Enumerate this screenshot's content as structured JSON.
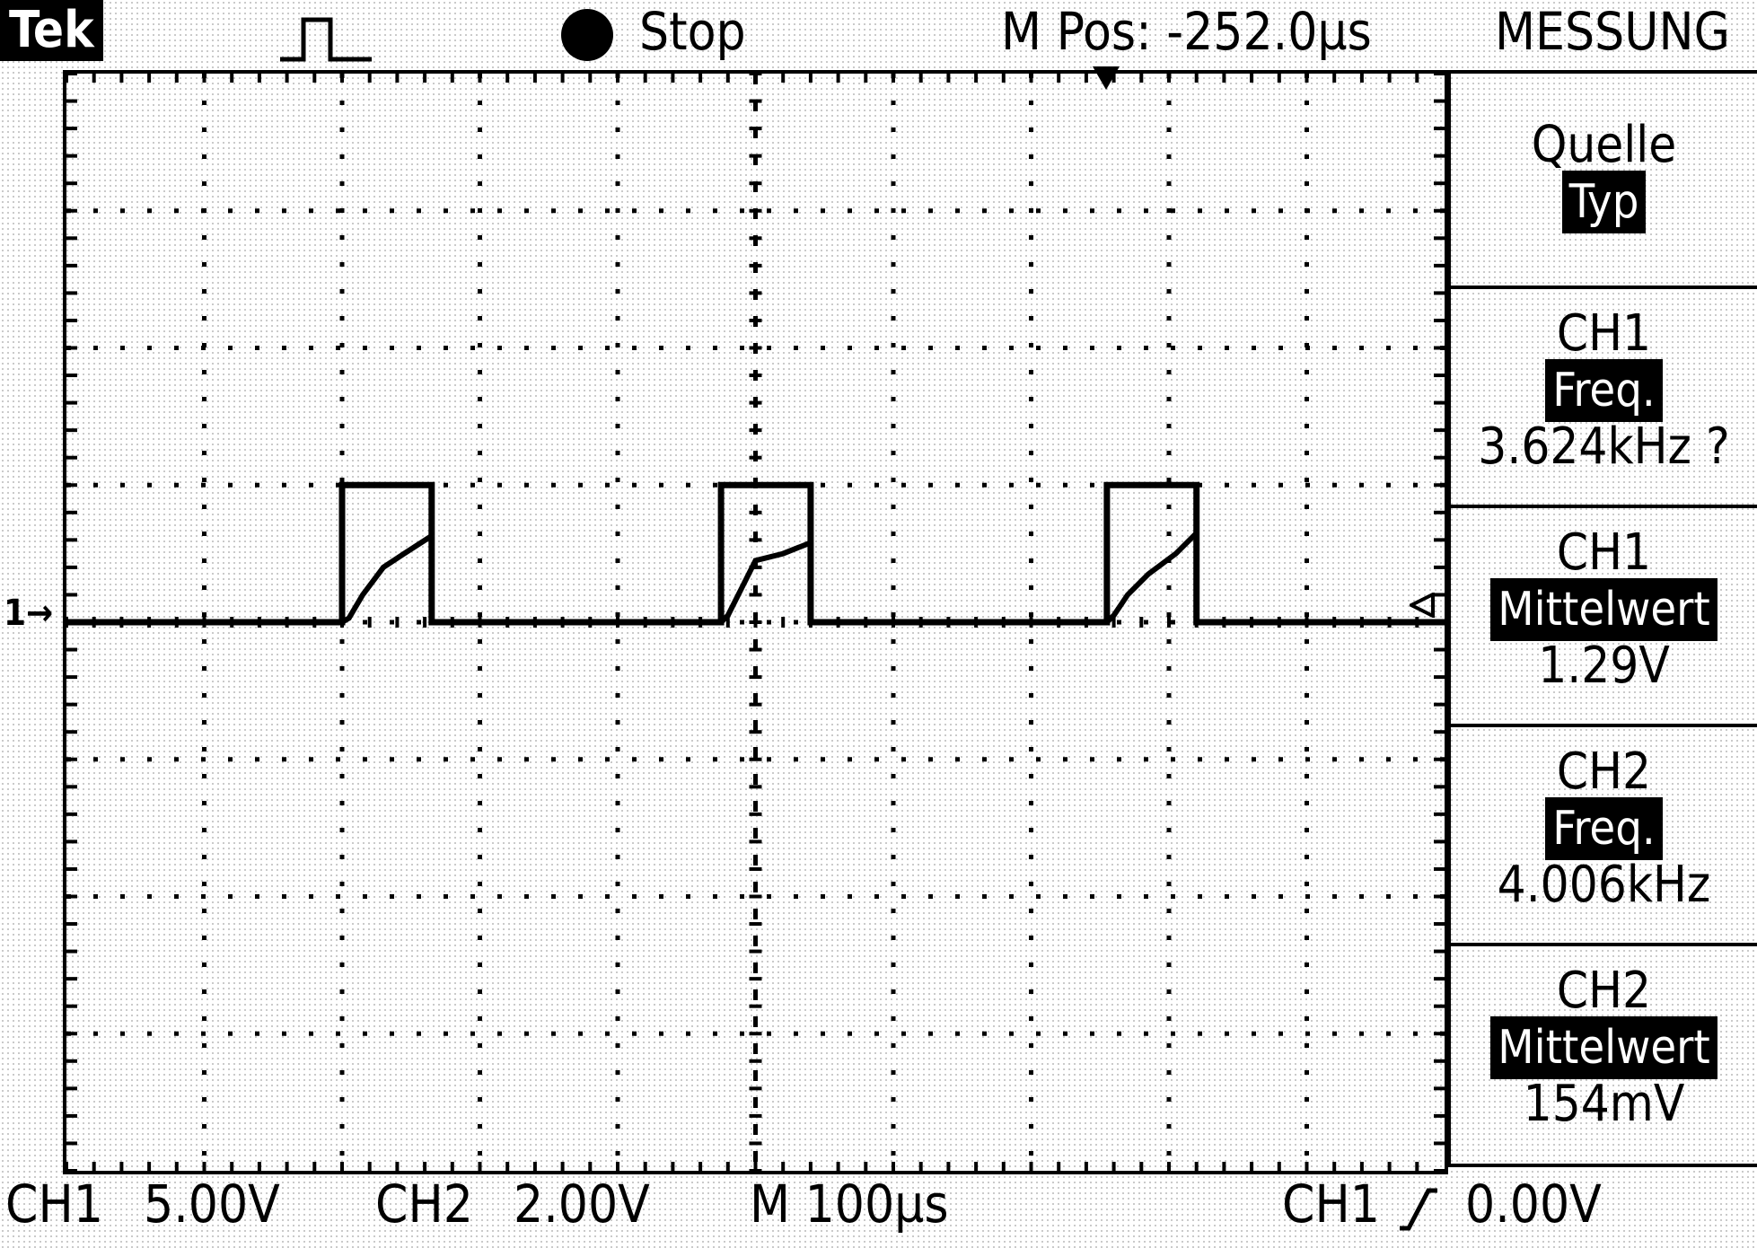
{
  "header": {
    "brand": "Tek",
    "trigger_icon": "pulse-trigger-icon",
    "run_state": "Stop",
    "position": "M Pos: -252.0µs",
    "menu_title": "MESSUNG"
  },
  "menu": {
    "items": [
      {
        "title": "Quelle",
        "selected": "Typ",
        "value": ""
      },
      {
        "title": "CH1",
        "selected": "Freq.",
        "value": "3.624kHz ?"
      },
      {
        "title": "CH1",
        "selected": "Mittelwert",
        "value": "1.29V"
      },
      {
        "title": "CH2",
        "selected": "Freq.",
        "value": "4.006kHz"
      },
      {
        "title": "CH2",
        "selected": "Mittelwert",
        "value": "154mV"
      }
    ]
  },
  "footer": {
    "ch1_label": "CH1",
    "ch1_scale": "5.00V",
    "ch2_label": "CH2",
    "ch2_scale": "2.00V",
    "timebase": "M 100µs",
    "trigger_source": "CH1",
    "trigger_slope_icon": "rising-edge-icon",
    "trigger_level": "0.00V"
  },
  "ground_marker": "1→",
  "chart_data": {
    "type": "line",
    "grid": {
      "divisions_x": 10,
      "divisions_y": 8
    },
    "units": {
      "x": "div",
      "y": "div"
    },
    "baseline_div": 0,
    "series": [
      {
        "name": "CH1",
        "x": [
          0,
          2.0,
          2.0,
          2.65,
          2.65,
          4.75,
          4.75,
          5.4,
          5.4,
          7.55,
          7.55,
          8.2,
          8.2,
          10
        ],
        "y": [
          0,
          0,
          1.0,
          1.0,
          0,
          0,
          1.0,
          1.0,
          0,
          0,
          1.0,
          1.0,
          0,
          0
        ]
      },
      {
        "name": "CH2",
        "x": [
          0,
          2.0,
          2.05,
          2.15,
          2.3,
          2.45,
          2.65,
          2.65,
          4.75,
          4.8,
          4.9,
          5.0,
          5.2,
          5.4,
          5.4,
          7.55,
          7.6,
          7.7,
          7.85,
          8.05,
          8.2,
          8.2,
          10
        ],
        "y": [
          0,
          0,
          0.03,
          0.2,
          0.4,
          0.5,
          0.63,
          0,
          0,
          0.05,
          0.25,
          0.45,
          0.5,
          0.58,
          0,
          0,
          0.05,
          0.2,
          0.35,
          0.5,
          0.65,
          0,
          0
        ]
      }
    ]
  }
}
